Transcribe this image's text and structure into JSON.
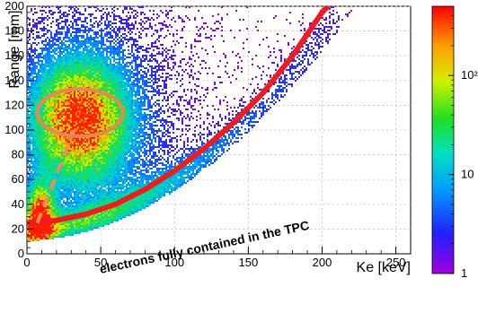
{
  "chart_data": {
    "type": "heatmap",
    "title": "",
    "xlabel": "Ke [keV]",
    "ylabel": "Range [mm]",
    "xlim": [
      0,
      260
    ],
    "ylim": [
      0,
      200
    ],
    "x_ticks": [
      0,
      50,
      100,
      150,
      200,
      250
    ],
    "y_ticks": [
      0,
      20,
      40,
      60,
      80,
      100,
      120,
      140,
      160,
      180,
      200
    ],
    "x_tick_labels": [
      "0",
      "50",
      "100",
      "150",
      "200",
      "250"
    ],
    "y_tick_labels": [
      "0",
      "20",
      "40",
      "60",
      "80",
      "100",
      "120",
      "140",
      "160",
      "180",
      "200"
    ],
    "grid": true,
    "colorbar": {
      "scale": "log",
      "range": [
        1,
        500
      ],
      "tick_labels": [
        {
          "value": 1,
          "label": "1"
        },
        {
          "value": 10,
          "label": "10"
        },
        {
          "value": 100,
          "label": "10²"
        }
      ]
    },
    "overlays": {
      "fit_curve": {
        "color": "#ee1c1c",
        "points": [
          [
            0,
            25
          ],
          [
            20,
            27
          ],
          [
            40,
            32
          ],
          [
            60,
            40
          ],
          [
            80,
            52
          ],
          [
            100,
            67
          ],
          [
            120,
            85
          ],
          [
            140,
            106
          ],
          [
            160,
            130
          ],
          [
            180,
            160
          ],
          [
            200,
            195
          ],
          [
            204,
            200
          ]
        ]
      },
      "dashed_line": {
        "color": "#f08b5c",
        "points": [
          [
            7,
            25
          ],
          [
            32,
            100
          ]
        ]
      },
      "ellipse": {
        "color": "#e8865a",
        "center": [
          36,
          114
        ],
        "radius_x": 29,
        "radius_y": 19
      }
    },
    "annotation": "electrons fully contained in the TPC",
    "colors": {
      "low": "#7a00cc",
      "mid": "#00c8b4",
      "high": "#ff2000"
    }
  }
}
